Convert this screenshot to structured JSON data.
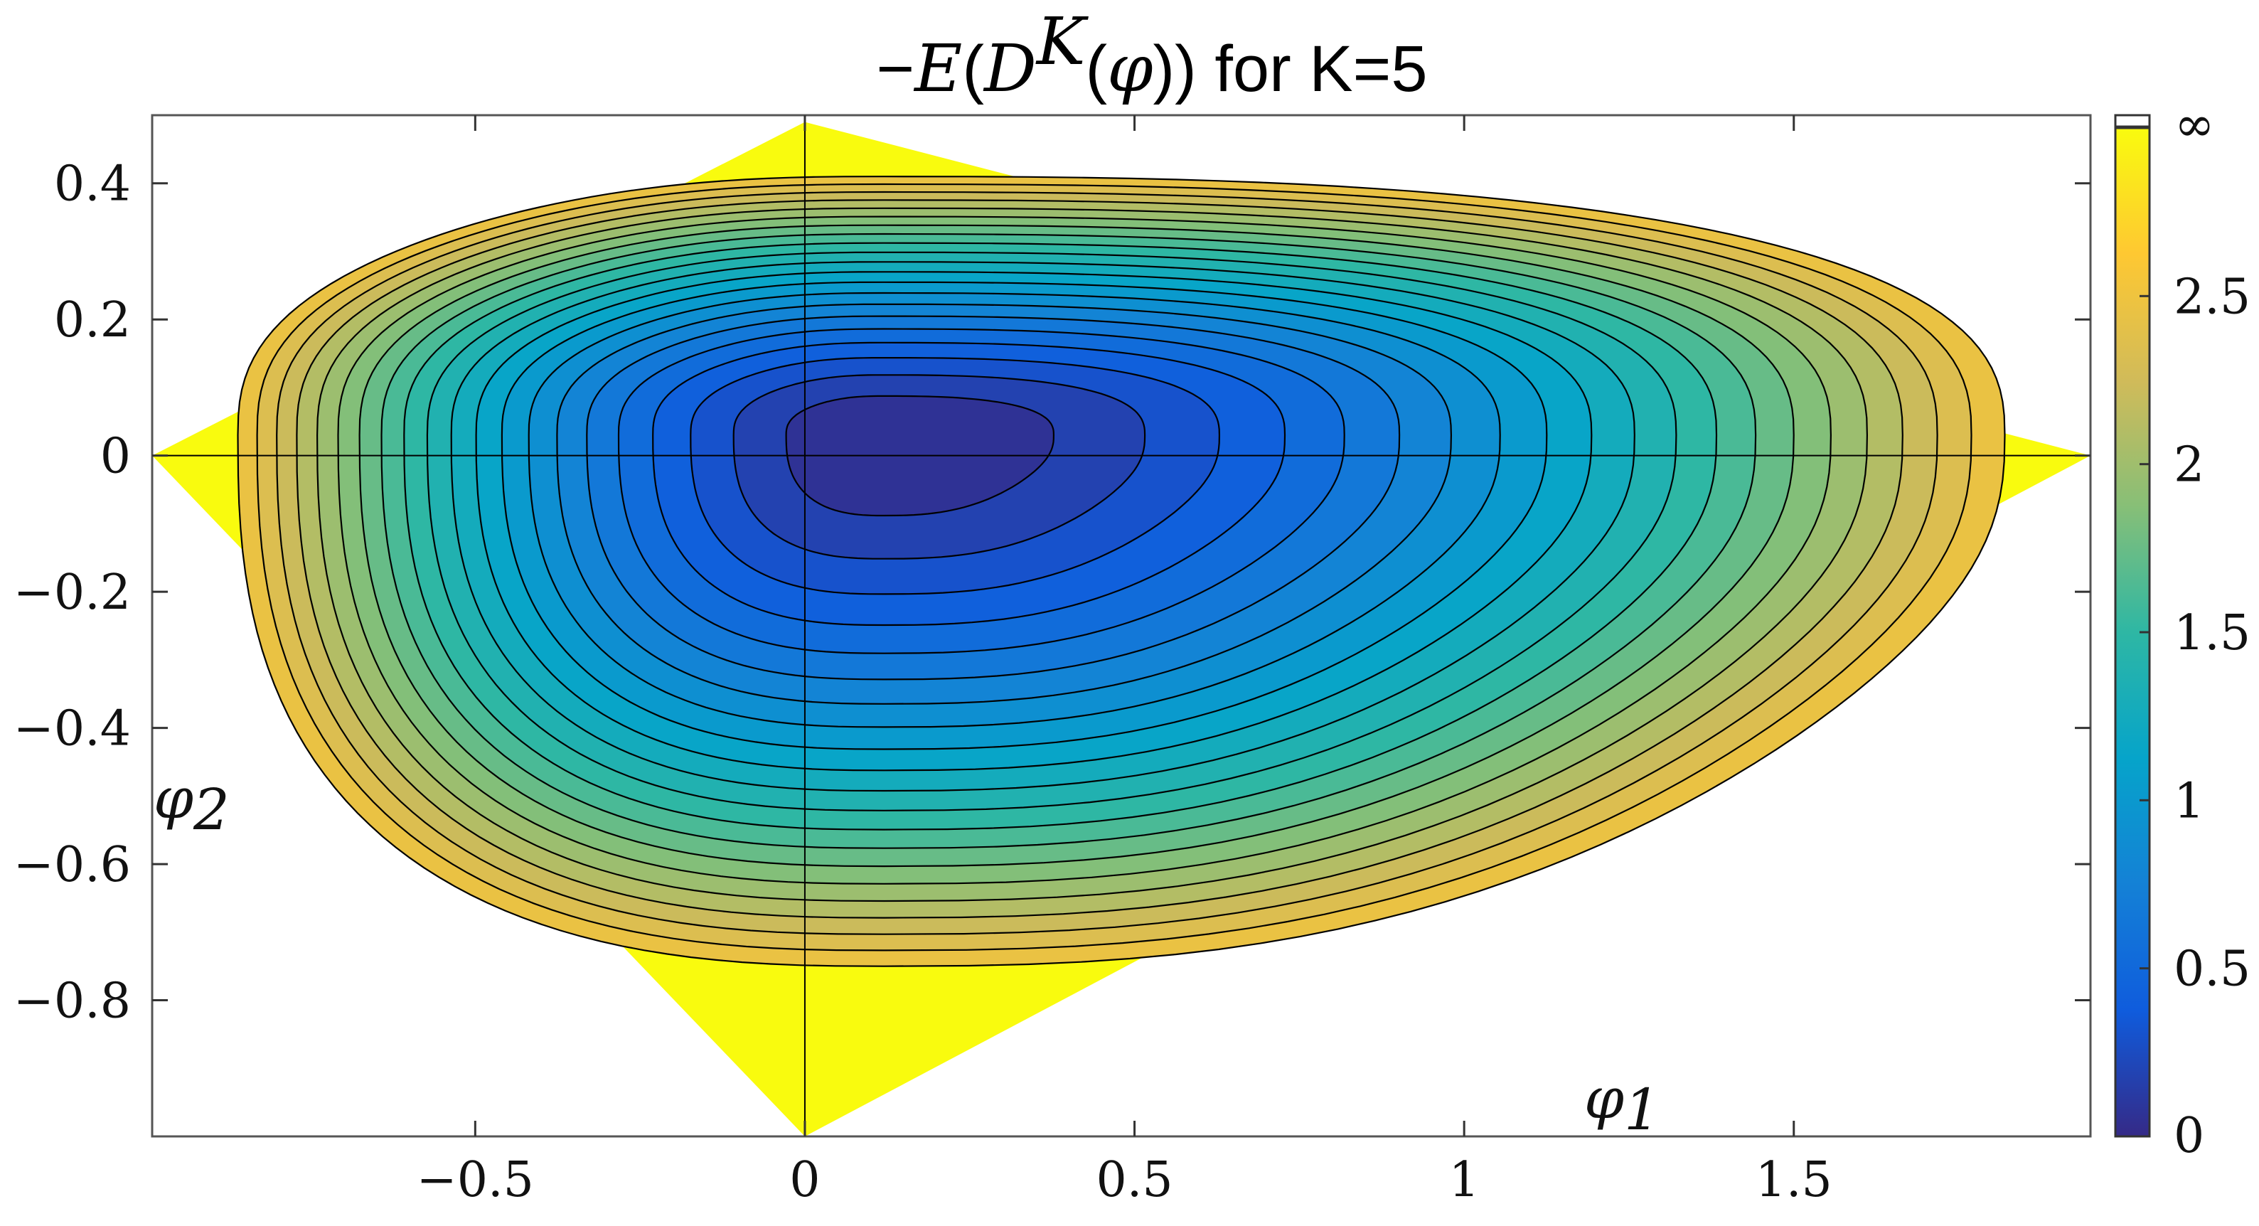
{
  "chart_data": {
    "type": "heatmap",
    "subtype": "filled-contour",
    "title": {
      "prefix": "−",
      "E": "E",
      "open1": "(",
      "D": "D",
      "K": "K",
      "open2": "(",
      "phi": "φ",
      "close": "))",
      "suffix": " for K=5"
    },
    "xlabel": {
      "symbol": "φ",
      "subscript": "1"
    },
    "ylabel": {
      "symbol": "φ",
      "subscript": "2"
    },
    "xlim": [
      -0.99,
      1.95
    ],
    "ylim": [
      -1.0,
      0.5
    ],
    "xticks": [
      -0.5,
      0,
      0.5,
      1,
      1.5
    ],
    "xtick_labels": [
      "−0.5",
      "0",
      "0.5",
      "1",
      "1.5"
    ],
    "yticks": [
      0.4,
      0.2,
      0,
      -0.2,
      -0.4,
      -0.6,
      -0.8
    ],
    "ytick_labels": [
      "0.4",
      "0.2",
      "0",
      "−0.2",
      "−0.4",
      "−0.6",
      "−0.8"
    ],
    "reference_lines": [
      "x = 0",
      "y = 0"
    ],
    "domain_polygon": [
      [
        -0.99,
        0.0
      ],
      [
        0.0,
        0.49
      ],
      [
        1.95,
        0.0
      ],
      [
        0.0,
        -1.0
      ]
    ],
    "minimum_location": [
      0.12,
      0.03
    ],
    "minimum_value": 0.0,
    "contour_levels": [
      0.12,
      0.24,
      0.36,
      0.48,
      0.6,
      0.72,
      0.84,
      0.96,
      1.08,
      1.2,
      1.32,
      1.44,
      1.56,
      1.68,
      1.8,
      1.92,
      2.04,
      2.16,
      2.28,
      2.4,
      2.52
    ],
    "outer_region_value": "∞",
    "colorbar": {
      "range": [
        0,
        3.0
      ],
      "ticks": [
        0,
        0.5,
        1,
        1.5,
        2,
        2.5
      ],
      "tick_labels": [
        "0",
        "0.5",
        "1",
        "1.5",
        "2",
        "2.5"
      ],
      "top_label": "∞",
      "colormap": "parula",
      "colors": [
        "#352a87",
        "#0f5cdd",
        "#1481d6",
        "#06a4ca",
        "#2eb7a4",
        "#87bf77",
        "#d1bb59",
        "#fec832",
        "#f9fb0e"
      ]
    }
  }
}
